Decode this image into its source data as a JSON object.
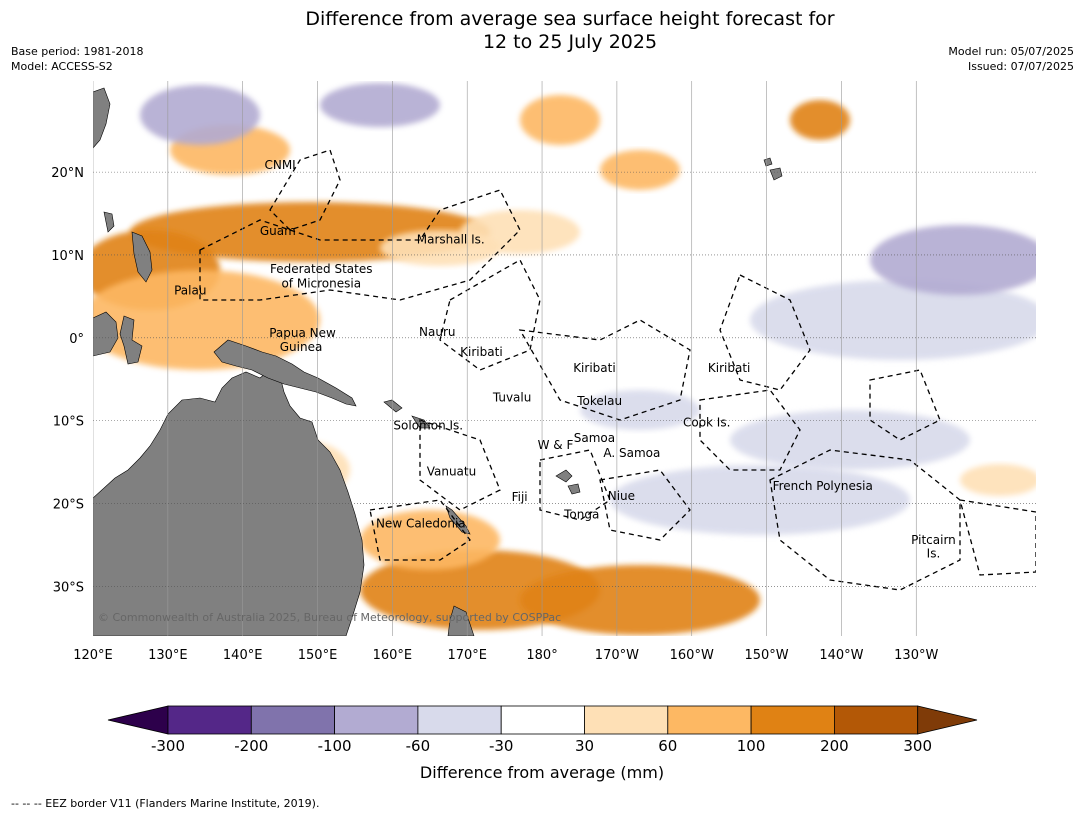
{
  "header": {
    "title_line1": "Difference from average sea surface height forecast for",
    "title_line2": "12 to 25 July 2025",
    "base_period": "Base period: 1981-2018",
    "model": "Model: ACCESS-S2",
    "model_run": "Model run: 05/07/2025",
    "issued": "Issued: 07/07/2025"
  },
  "map": {
    "extent": {
      "lon_min": 120,
      "lon_max": 246,
      "lat_min": -36,
      "lat_max": 31
    },
    "lon_ticks": [
      {
        "lon": 120,
        "label": "120°E"
      },
      {
        "lon": 130,
        "label": "130°E"
      },
      {
        "lon": 140,
        "label": "140°E"
      },
      {
        "lon": 150,
        "label": "150°E"
      },
      {
        "lon": 160,
        "label": "160°E"
      },
      {
        "lon": 170,
        "label": "170°E"
      },
      {
        "lon": 180,
        "label": "180°"
      },
      {
        "lon": 190,
        "label": "170°W"
      },
      {
        "lon": 200,
        "label": "160°W"
      },
      {
        "lon": 210,
        "label": "150°W"
      },
      {
        "lon": 220,
        "label": "140°W"
      },
      {
        "lon": 230,
        "label": "130°W"
      }
    ],
    "lat_ticks": [
      {
        "lat": 20,
        "label": "20°N"
      },
      {
        "lat": 10,
        "label": "10°N"
      },
      {
        "lat": 0,
        "label": "0°"
      },
      {
        "lat": -10,
        "label": "10°S"
      },
      {
        "lat": -20,
        "label": "20°S"
      },
      {
        "lat": -30,
        "label": "30°S"
      }
    ],
    "land_color": "#808080",
    "places": [
      {
        "name": "CNMI",
        "lon": 145.0,
        "lat": 20.4
      },
      {
        "name": "Guam",
        "lon": 144.7,
        "lat": 12.4
      },
      {
        "name": "Marshall Is.",
        "lon": 167.8,
        "lat": 11.4
      },
      {
        "name": "Federated States",
        "lon": 150.5,
        "lat": 7.8
      },
      {
        "name": "of Micronesia",
        "lon": 150.5,
        "lat": 6.1
      },
      {
        "name": "Palau",
        "lon": 133.0,
        "lat": 5.2
      },
      {
        "name": "Nauru",
        "lon": 166.0,
        "lat": 0.2
      },
      {
        "name": "Papua New",
        "lon": 148.0,
        "lat": 0.1
      },
      {
        "name": "Guinea",
        "lon": 147.8,
        "lat": -1.6
      },
      {
        "name": "Kiribati",
        "lon": 171.9,
        "lat": -2.2
      },
      {
        "name": "Kiribati",
        "lon": 187.0,
        "lat": -4.1
      },
      {
        "name": "Kiribati",
        "lon": 205.0,
        "lat": -4.1
      },
      {
        "name": "Tuvalu",
        "lon": 176.0,
        "lat": -7.7
      },
      {
        "name": "Tokelau",
        "lon": 187.7,
        "lat": -8.1
      },
      {
        "name": "Cook Is.",
        "lon": 202.0,
        "lat": -10.7
      },
      {
        "name": "Solomon Is.",
        "lon": 164.8,
        "lat": -11.1
      },
      {
        "name": "Samoa",
        "lon": 187.0,
        "lat": -12.6
      },
      {
        "name": "W & F",
        "lon": 181.8,
        "lat": -13.4
      },
      {
        "name": "A. Samoa",
        "lon": 192.0,
        "lat": -14.4
      },
      {
        "name": "Vanuatu",
        "lon": 167.9,
        "lat": -16.6
      },
      {
        "name": "French Polynesia",
        "lon": 217.5,
        "lat": -18.4
      },
      {
        "name": "Fiji",
        "lon": 177.0,
        "lat": -19.7
      },
      {
        "name": "Niue",
        "lon": 190.6,
        "lat": -19.6
      },
      {
        "name": "Tonga",
        "lon": 185.3,
        "lat": -21.8
      },
      {
        "name": "New Caledonia",
        "lon": 163.8,
        "lat": -22.9
      },
      {
        "name": "Pitcairn",
        "lon": 232.3,
        "lat": -24.9
      },
      {
        "name": "Is.",
        "lon": 232.3,
        "lat": -26.5
      }
    ],
    "copyright": "© Commonwealth of Australia 2025, Bureau of Meteorology, supported by COSPPac"
  },
  "legend": {
    "colors": [
      "#2d004b",
      "#542788",
      "#8073ac",
      "#b2abd2",
      "#d8daeb",
      "#ffffff",
      "#fee0b6",
      "#fdb863",
      "#e08214",
      "#b35806",
      "#7f3b08"
    ],
    "ticks": [
      "-300",
      "-200",
      "-100",
      "-60",
      "-30",
      "30",
      "60",
      "100",
      "200",
      "300"
    ],
    "label": "Difference from average (mm)"
  },
  "footnote": "--  --  -- EEZ border V11 (Flanders Marine Institute, 2019)."
}
